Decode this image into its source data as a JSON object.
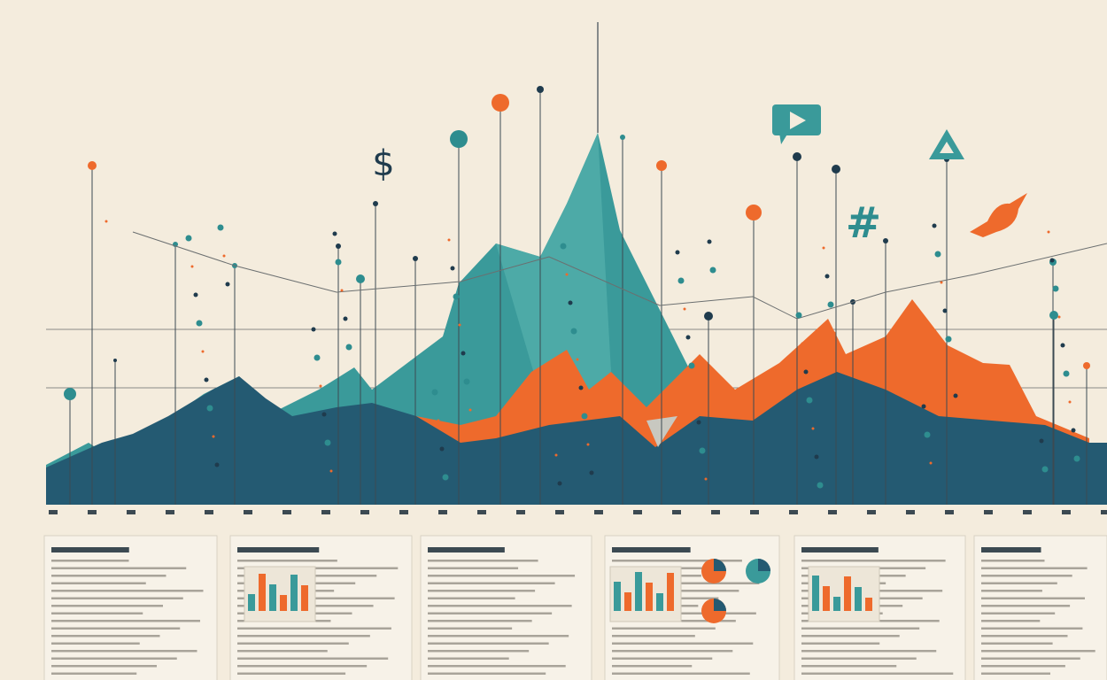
{
  "symbols": [
    "$",
    "#"
  ]
}
